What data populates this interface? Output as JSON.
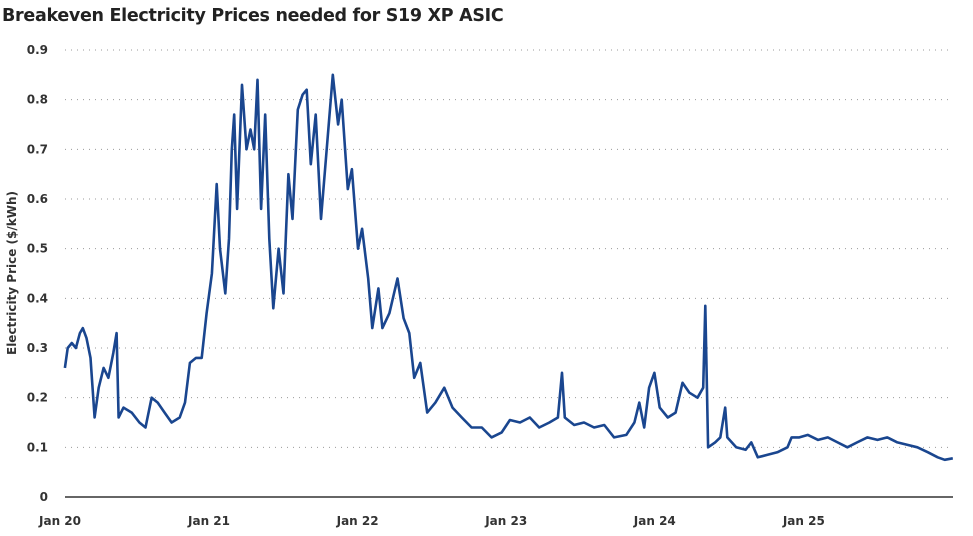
{
  "chart_data": {
    "type": "line",
    "title": "Breakeven Electricity Prices needed for S19 XP ASIC",
    "xlabel": "",
    "ylabel": "Electricity Price ($/kWh)",
    "ylim": [
      0,
      0.9
    ],
    "yticks": [
      "0",
      "0.1",
      "0.2",
      "0.3",
      "0.4",
      "0.5",
      "0.6",
      "0.7",
      "0.8",
      "0.9"
    ],
    "xticks": [
      {
        "label": "Jan 20",
        "date": "2020-01-01"
      },
      {
        "label": "Jan 21",
        "date": "2021-01-01"
      },
      {
        "label": "Jan 22",
        "date": "2022-01-01"
      },
      {
        "label": "Jan 23",
        "date": "2023-01-01"
      },
      {
        "label": "Jan 24",
        "date": "2024-01-01"
      },
      {
        "label": "Jan 25",
        "date": "2025-01-01"
      }
    ],
    "grid": "horizontal-dotted",
    "legend": "none",
    "line_color": "#1a468f",
    "series": [
      {
        "x": [
          "2020-01-13",
          "2020-01-20",
          "2020-01-30",
          "2020-02-09",
          "2020-02-19",
          "2020-02-26",
          "2020-03-06",
          "2020-03-16",
          "2020-03-26",
          "2020-04-05",
          "2020-04-17",
          "2020-04-29",
          "2020-05-11",
          "2020-05-19",
          "2020-05-24",
          "2020-06-05",
          "2020-06-25",
          "2020-07-14",
          "2020-07-29",
          "2020-08-13",
          "2020-08-28",
          "2020-09-14",
          "2020-10-01",
          "2020-10-21",
          "2020-11-03",
          "2020-11-15",
          "2020-11-30",
          "2020-12-14",
          "2020-12-26",
          "2021-01-08",
          "2021-01-20",
          "2021-01-28",
          "2021-02-10",
          "2021-02-19",
          "2021-02-26",
          "2021-03-04",
          "2021-03-11",
          "2021-03-23",
          "2021-04-03",
          "2021-04-13",
          "2021-04-22",
          "2021-04-30",
          "2021-05-09",
          "2021-05-19",
          "2021-05-29",
          "2021-06-08",
          "2021-06-21",
          "2021-07-03",
          "2021-07-15",
          "2021-07-25",
          "2021-08-07",
          "2021-08-19",
          "2021-08-29",
          "2021-09-08",
          "2021-09-20",
          "2021-10-03",
          "2021-10-17",
          "2021-11-01",
          "2021-11-14",
          "2021-11-23",
          "2021-12-08",
          "2021-12-18",
          "2022-01-02",
          "2022-01-12",
          "2022-01-27",
          "2022-02-06",
          "2022-02-21",
          "2022-03-03",
          "2022-03-20",
          "2022-04-09",
          "2022-04-24",
          "2022-05-08",
          "2022-05-20",
          "2022-06-04",
          "2022-06-21",
          "2022-07-11",
          "2022-08-02",
          "2022-08-22",
          "2022-09-14",
          "2022-10-08",
          "2022-11-02",
          "2022-11-26",
          "2022-12-21",
          "2023-01-10",
          "2023-02-04",
          "2023-02-28",
          "2023-03-23",
          "2023-04-17",
          "2023-05-08",
          "2023-05-18",
          "2023-05-25",
          "2023-06-17",
          "2023-07-11",
          "2023-08-05",
          "2023-08-30",
          "2023-09-23",
          "2023-10-23",
          "2023-11-12",
          "2023-11-24",
          "2023-12-06",
          "2023-12-18",
          "2023-12-31",
          "2024-01-13",
          "2024-02-02",
          "2024-02-21",
          "2024-03-09",
          "2024-03-26",
          "2024-04-15",
          "2024-04-29",
          "2024-05-04",
          "2024-05-11",
          "2024-05-28",
          "2024-06-10",
          "2024-06-22",
          "2024-06-27",
          "2024-07-19",
          "2024-08-11",
          "2024-08-25",
          "2024-09-10",
          "2024-10-04",
          "2024-10-28",
          "2024-11-22",
          "2024-12-02",
          "2024-12-21",
          "2025-01-11",
          "2025-02-05",
          "2025-03-01",
          "2025-03-25",
          "2025-04-18",
          "2025-05-12",
          "2025-06-06",
          "2025-07-01",
          "2025-07-25",
          "2025-08-19",
          "2025-09-13",
          "2025-10-07",
          "2025-11-02",
          "2025-11-26",
          "2025-12-13",
          "2026-01-02"
        ],
        "y": [
          0.26,
          0.3,
          0.31,
          0.3,
          0.33,
          0.34,
          0.32,
          0.28,
          0.16,
          0.22,
          0.26,
          0.24,
          0.29,
          0.33,
          0.16,
          0.18,
          0.17,
          0.15,
          0.14,
          0.2,
          0.19,
          0.17,
          0.15,
          0.16,
          0.19,
          0.27,
          0.28,
          0.28,
          0.37,
          0.45,
          0.63,
          0.5,
          0.41,
          0.52,
          0.7,
          0.77,
          0.58,
          0.83,
          0.7,
          0.74,
          0.7,
          0.84,
          0.58,
          0.77,
          0.52,
          0.38,
          0.5,
          0.41,
          0.65,
          0.56,
          0.78,
          0.81,
          0.82,
          0.67,
          0.77,
          0.56,
          0.7,
          0.85,
          0.75,
          0.8,
          0.62,
          0.66,
          0.5,
          0.54,
          0.44,
          0.34,
          0.42,
          0.34,
          0.37,
          0.44,
          0.36,
          0.33,
          0.24,
          0.27,
          0.17,
          0.19,
          0.22,
          0.18,
          0.16,
          0.14,
          0.14,
          0.12,
          0.13,
          0.155,
          0.15,
          0.16,
          0.14,
          0.15,
          0.16,
          0.25,
          0.16,
          0.145,
          0.15,
          0.14,
          0.145,
          0.12,
          0.125,
          0.15,
          0.19,
          0.14,
          0.22,
          0.25,
          0.18,
          0.16,
          0.17,
          0.23,
          0.21,
          0.2,
          0.22,
          0.385,
          0.1,
          0.11,
          0.12,
          0.18,
          0.12,
          0.1,
          0.095,
          0.11,
          0.08,
          0.085,
          0.09,
          0.1,
          0.12,
          0.12,
          0.125,
          0.115,
          0.12,
          0.11,
          0.1,
          0.11,
          0.12,
          0.115,
          0.12,
          0.11,
          0.105,
          0.1,
          0.09,
          0.08,
          0.075,
          0.078
        ]
      }
    ]
  }
}
